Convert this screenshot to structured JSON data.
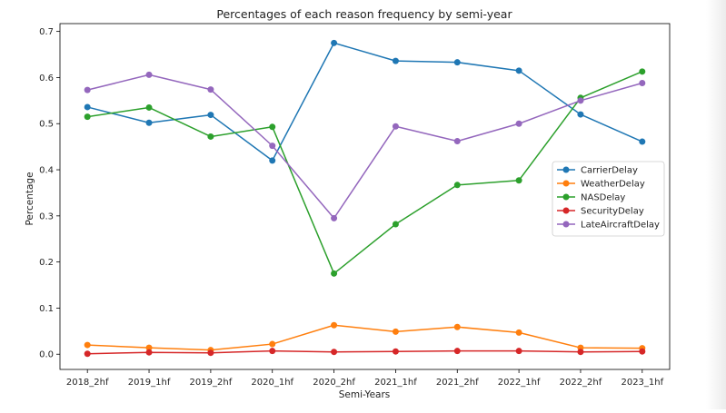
{
  "chart_data": {
    "type": "line",
    "title": "Percentages of each reason frequency by semi-year",
    "xlabel": "Semi-Years",
    "ylabel": "Percentage",
    "categories": [
      "2018_2hf",
      "2019_1hf",
      "2019_2hf",
      "2020_1hf",
      "2020_2hf",
      "2021_1hf",
      "2021_2hf",
      "2022_1hf",
      "2022_2hf",
      "2023_1hf"
    ],
    "ylim": [
      -0.033,
      0.717
    ],
    "yticks": [
      0.0,
      0.1,
      0.2,
      0.3,
      0.4,
      0.5,
      0.6,
      0.7
    ],
    "ytick_labels": [
      "0.0",
      "0.1",
      "0.2",
      "0.3",
      "0.4",
      "0.5",
      "0.6",
      "0.7"
    ],
    "grid": false,
    "legend_position": "center-right",
    "series": [
      {
        "name": "CarrierDelay",
        "color": "#1f77b4",
        "values": [
          0.536,
          0.502,
          0.519,
          0.42,
          0.675,
          0.636,
          0.633,
          0.615,
          0.52,
          0.461
        ]
      },
      {
        "name": "WeatherDelay",
        "color": "#ff7f0e",
        "values": [
          0.02,
          0.014,
          0.009,
          0.022,
          0.063,
          0.049,
          0.059,
          0.047,
          0.014,
          0.013
        ]
      },
      {
        "name": "NASDelay",
        "color": "#2ca02c",
        "values": [
          0.515,
          0.535,
          0.472,
          0.493,
          0.175,
          0.282,
          0.367,
          0.377,
          0.556,
          0.613
        ]
      },
      {
        "name": "SecurityDelay",
        "color": "#d62728",
        "values": [
          0.001,
          0.004,
          0.003,
          0.007,
          0.005,
          0.006,
          0.007,
          0.007,
          0.005,
          0.006
        ]
      },
      {
        "name": "LateAircraftDelay",
        "color": "#9467bd",
        "values": [
          0.573,
          0.606,
          0.574,
          0.452,
          0.295,
          0.494,
          0.462,
          0.5,
          0.55,
          0.588
        ]
      }
    ]
  }
}
